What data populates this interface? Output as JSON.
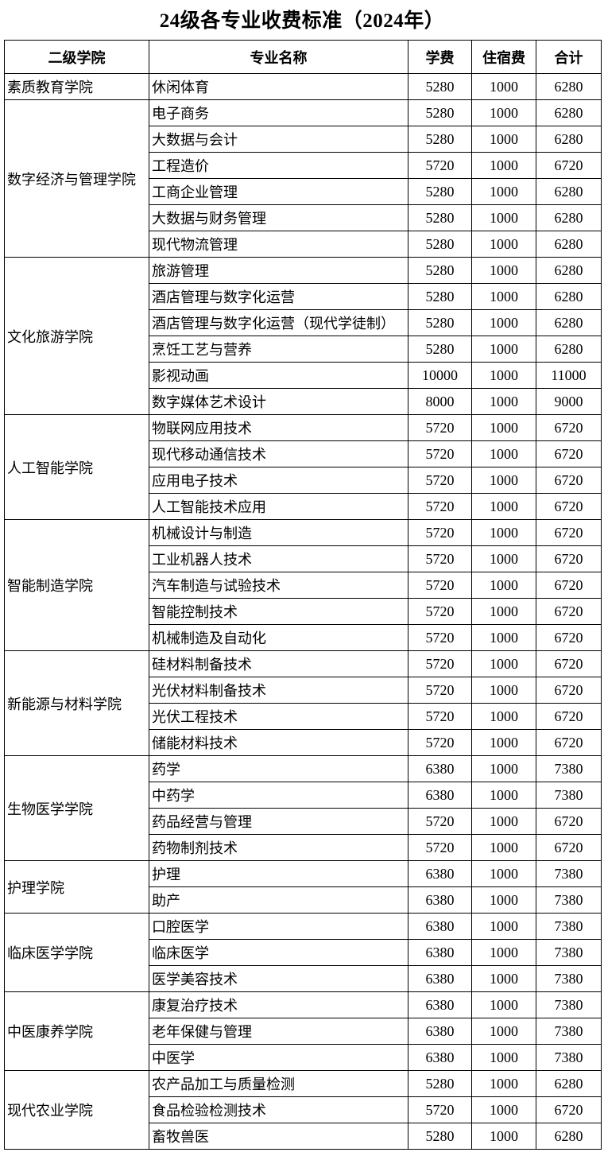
{
  "title": "24级各专业收费标准（2024年）",
  "headers": [
    "二级学院",
    "专业名称",
    "学费",
    "住宿费",
    "合计"
  ],
  "colleges": [
    {
      "name": "素质教育学院",
      "majors": [
        [
          "休闲体育",
          "5280",
          "1000",
          "6280"
        ]
      ]
    },
    {
      "name": "数字经济与管理学院",
      "majors": [
        [
          "电子商务",
          "5280",
          "1000",
          "6280"
        ],
        [
          "大数据与会计",
          "5280",
          "1000",
          "6280"
        ],
        [
          "工程造价",
          "5720",
          "1000",
          "6720"
        ],
        [
          "工商企业管理",
          "5280",
          "1000",
          "6280"
        ],
        [
          "大数据与财务管理",
          "5280",
          "1000",
          "6280"
        ],
        [
          "现代物流管理",
          "5280",
          "1000",
          "6280"
        ]
      ]
    },
    {
      "name": "文化旅游学院",
      "majors": [
        [
          "旅游管理",
          "5280",
          "1000",
          "6280"
        ],
        [
          "酒店管理与数字化运营",
          "5280",
          "1000",
          "6280"
        ],
        [
          "酒店管理与数字化运营（现代学徒制）",
          "5280",
          "1000",
          "6280"
        ],
        [
          "烹饪工艺与营养",
          "5280",
          "1000",
          "6280"
        ],
        [
          "影视动画",
          "10000",
          "1000",
          "11000"
        ],
        [
          "数字媒体艺术设计",
          "8000",
          "1000",
          "9000"
        ]
      ]
    },
    {
      "name": "人工智能学院",
      "majors": [
        [
          "物联网应用技术",
          "5720",
          "1000",
          "6720"
        ],
        [
          "现代移动通信技术",
          "5720",
          "1000",
          "6720"
        ],
        [
          "应用电子技术",
          "5720",
          "1000",
          "6720"
        ],
        [
          "人工智能技术应用",
          "5720",
          "1000",
          "6720"
        ]
      ]
    },
    {
      "name": "智能制造学院",
      "majors": [
        [
          "机械设计与制造",
          "5720",
          "1000",
          "6720"
        ],
        [
          "工业机器人技术",
          "5720",
          "1000",
          "6720"
        ],
        [
          "汽车制造与试验技术",
          "5720",
          "1000",
          "6720"
        ],
        [
          "智能控制技术",
          "5720",
          "1000",
          "6720"
        ],
        [
          "机械制造及自动化",
          "5720",
          "1000",
          "6720"
        ]
      ]
    },
    {
      "name": "新能源与材料学院",
      "majors": [
        [
          "硅材料制备技术",
          "5720",
          "1000",
          "6720"
        ],
        [
          "光伏材料制备技术",
          "5720",
          "1000",
          "6720"
        ],
        [
          "光伏工程技术",
          "5720",
          "1000",
          "6720"
        ],
        [
          "储能材料技术",
          "5720",
          "1000",
          "6720"
        ]
      ]
    },
    {
      "name": "生物医学学院",
      "majors": [
        [
          "药学",
          "6380",
          "1000",
          "7380"
        ],
        [
          "中药学",
          "6380",
          "1000",
          "7380"
        ],
        [
          "药品经营与管理",
          "5720",
          "1000",
          "6720"
        ],
        [
          "药物制剂技术",
          "5720",
          "1000",
          "6720"
        ]
      ]
    },
    {
      "name": "护理学院",
      "majors": [
        [
          "护理",
          "6380",
          "1000",
          "7380"
        ],
        [
          "助产",
          "6380",
          "1000",
          "7380"
        ]
      ]
    },
    {
      "name": "临床医学学院",
      "majors": [
        [
          "口腔医学",
          "6380",
          "1000",
          "7380"
        ],
        [
          "临床医学",
          "6380",
          "1000",
          "7380"
        ],
        [
          "医学美容技术",
          "6380",
          "1000",
          "7380"
        ]
      ]
    },
    {
      "name": "中医康养学院",
      "majors": [
        [
          "康复治疗技术",
          "6380",
          "1000",
          "7380"
        ],
        [
          "老年保健与管理",
          "6380",
          "1000",
          "7380"
        ],
        [
          "中医学",
          "6380",
          "1000",
          "7380"
        ]
      ]
    },
    {
      "name": "现代农业学院",
      "majors": [
        [
          "农产品加工与质量检测",
          "5280",
          "1000",
          "6280"
        ],
        [
          "食品检验检测技术",
          "5720",
          "1000",
          "6720"
        ],
        [
          "畜牧兽医",
          "5280",
          "1000",
          "6280"
        ]
      ]
    }
  ]
}
